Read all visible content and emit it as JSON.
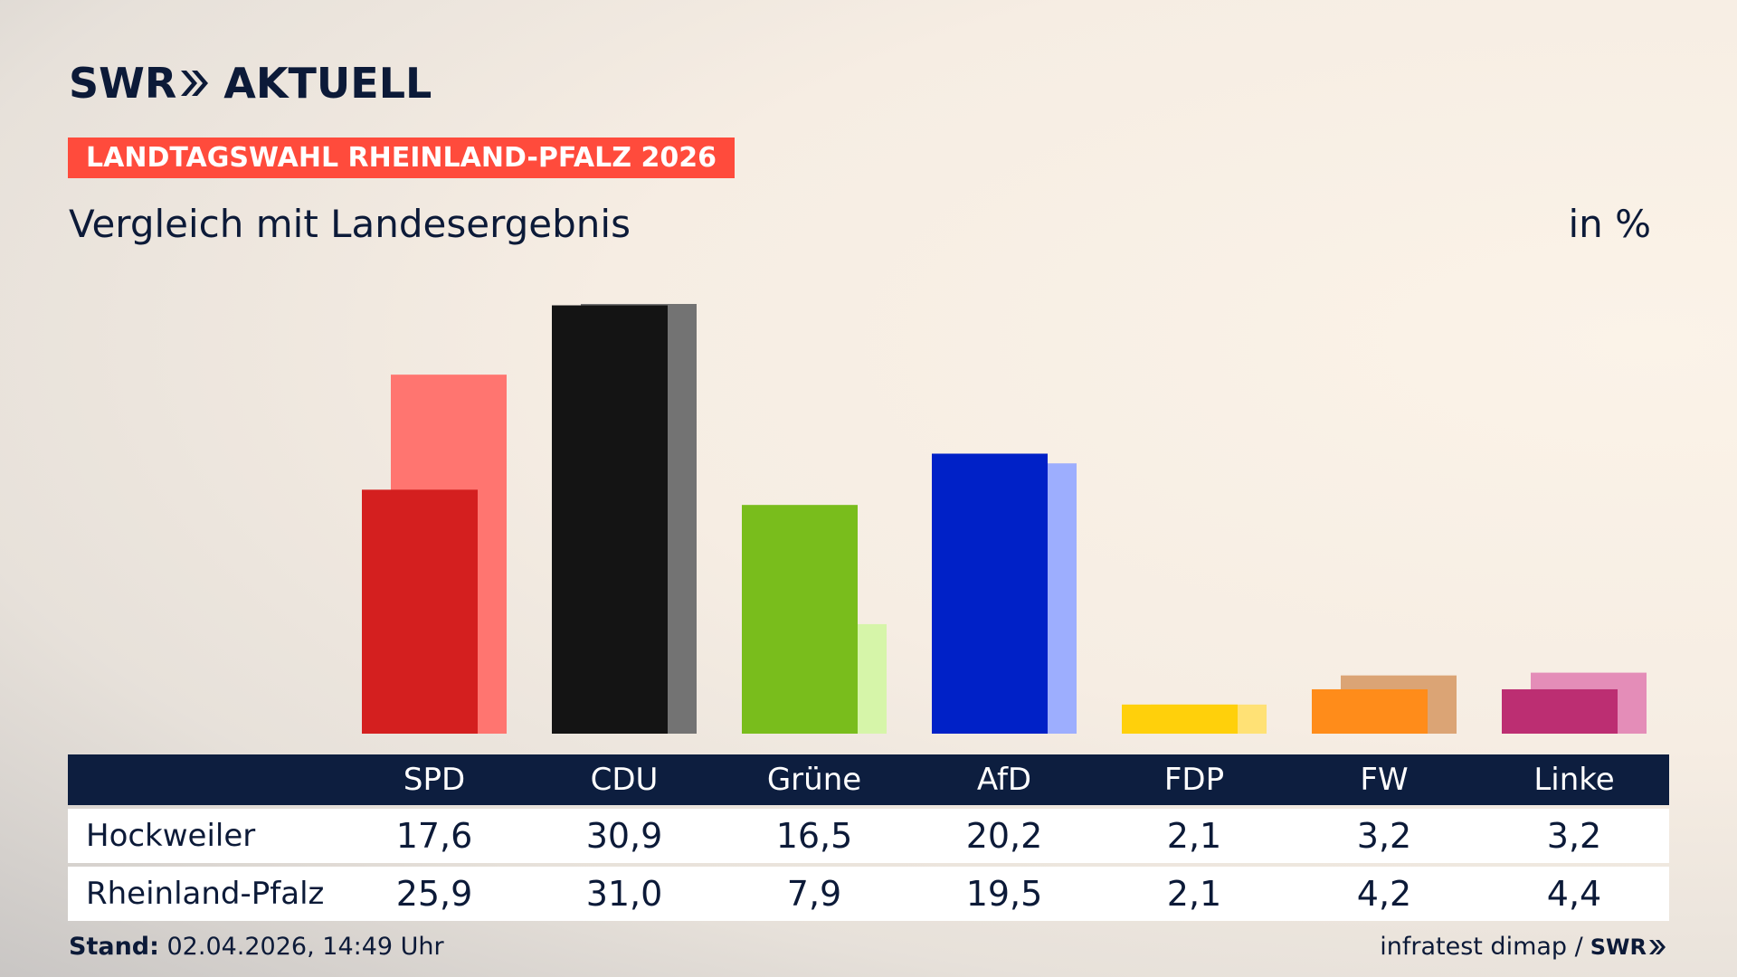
{
  "brand": {
    "logo_left": "SWR",
    "logo_right": "AKTUELL",
    "mini_logo": "SWR"
  },
  "header": {
    "badge": "LANDTAGSWAHL RHEINLAND-PFALZ 2026",
    "subtitle": "Vergleich mit Landesergebnis",
    "unit": "in %"
  },
  "footer": {
    "stand_label": "Stand:",
    "stand_value": " 02.04.2026, 14:49 Uhr",
    "source": "infratest dimap /"
  },
  "colors": {
    "badge": "#ff4b3c",
    "navy": "#0d1e3f",
    "SPD": [
      "#d41f1f",
      "#ff7570"
    ],
    "CDU": [
      "#141414",
      "#737373"
    ],
    "Grüne": [
      "#79bd1c",
      "#d6f5a9"
    ],
    "AfD": [
      "#0021c7",
      "#9daefe"
    ],
    "FDP": [
      "#ffd00b",
      "#ffe175"
    ],
    "FW": [
      "#ff8c1a",
      "#dba475"
    ],
    "Linke": [
      "#bc2e72",
      "#e48db8"
    ]
  },
  "chart_data": {
    "type": "bar",
    "categories": [
      "SPD",
      "CDU",
      "Grüne",
      "AfD",
      "FDP",
      "FW",
      "Linke"
    ],
    "series": [
      {
        "name": "Hockweiler",
        "values": [
          17.6,
          30.9,
          16.5,
          20.2,
          2.1,
          3.2,
          3.2
        ]
      },
      {
        "name": "Rheinland-Pfalz",
        "values": [
          25.9,
          31.0,
          7.9,
          19.5,
          2.1,
          4.2,
          4.4
        ]
      }
    ],
    "display_values": {
      "Hockweiler": [
        "17,6",
        "30,9",
        "16,5",
        "20,2",
        "2,1",
        "3,2",
        "3,2"
      ],
      "Rheinland-Pfalz": [
        "25,9",
        "31,0",
        "7,9",
        "19,5",
        "2,1",
        "4,2",
        "4,4"
      ]
    },
    "title": "Vergleich mit Landesergebnis",
    "ylabel": "in %",
    "ylim": [
      0,
      31
    ],
    "grid": false,
    "legend": "table-below"
  }
}
